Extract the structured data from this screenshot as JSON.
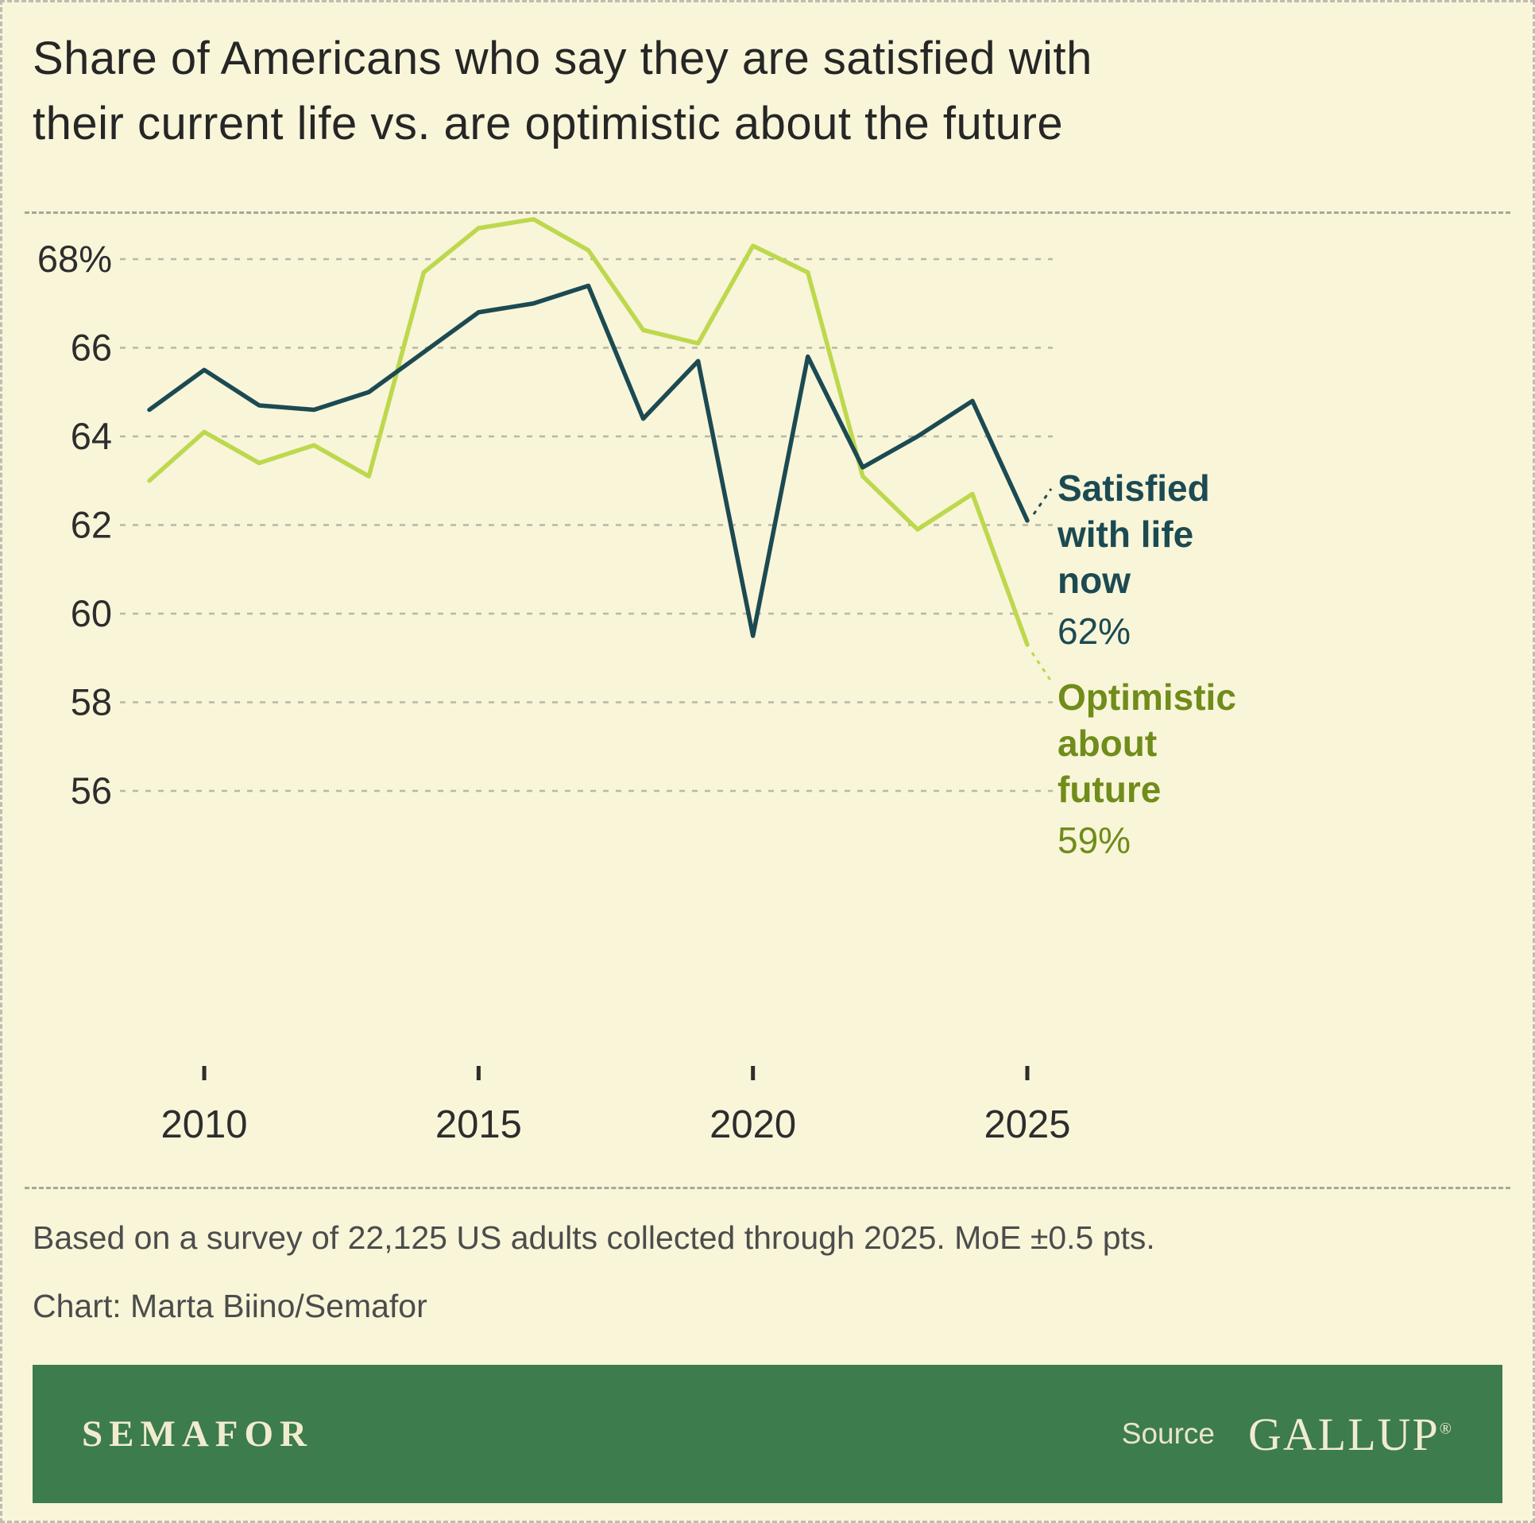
{
  "title_lines": [
    "Share of Americans who say they are satisfied with",
    "their current life vs. are optimistic about the future"
  ],
  "notes": {
    "survey": "Based on a survey of 22,125 US adults collected through 2025. MoE ±0.5 pts.",
    "credit": "Chart: Marta Biino/Semafor"
  },
  "footer": {
    "brand": "SEMAFOR",
    "source_label": "Source",
    "source_name": "GALLUP",
    "registered_mark": "®"
  },
  "colors": {
    "background": "#f8f5d9",
    "grid": "#b8b8a8",
    "axis_text": "#2d2d2d",
    "satisfied_line": "#1c4a52",
    "optimistic_line": "#bdd84d",
    "optimistic_label": "#708c1a",
    "footer_green": "#3d7c4c",
    "footer_text": "#f1ecd0"
  },
  "chart_data": {
    "type": "line",
    "x": [
      2009,
      2010,
      2011,
      2012,
      2013,
      2014,
      2015,
      2016,
      2017,
      2018,
      2019,
      2020,
      2021,
      2022,
      2023,
      2024,
      2025
    ],
    "series": [
      {
        "name": "Satisfied with life now",
        "label_lines": [
          "Satisfied",
          "with life",
          "now"
        ],
        "end_label": "62%",
        "color": "#1c4a52",
        "values": [
          64.6,
          65.5,
          64.7,
          64.6,
          65.0,
          65.9,
          66.8,
          67.0,
          67.4,
          64.4,
          65.7,
          59.5,
          65.8,
          63.3,
          64.0,
          64.8,
          62.1
        ]
      },
      {
        "name": "Optimistic about future",
        "label_lines": [
          "Optimistic",
          "about",
          "future"
        ],
        "end_label": "59%",
        "color": "#bdd84d",
        "values": [
          63.0,
          64.1,
          63.4,
          63.8,
          63.1,
          67.7,
          68.7,
          68.9,
          68.2,
          66.4,
          66.1,
          68.3,
          67.7,
          63.1,
          61.9,
          62.7,
          59.3
        ]
      }
    ],
    "y_ticks": [
      56,
      58,
      60,
      62,
      64,
      66,
      68
    ],
    "y_tick_labels": [
      "56",
      "58",
      "60",
      "62",
      "64",
      "66",
      "68%"
    ],
    "x_ticks": [
      2010,
      2015,
      2020,
      2025
    ],
    "ylim": [
      49.5,
      69.5
    ],
    "grid": "dashed horizontal",
    "legend_position": "right-annotations"
  }
}
